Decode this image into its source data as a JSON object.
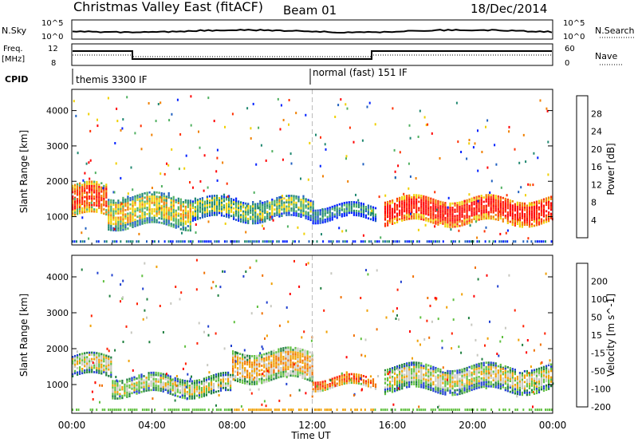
{
  "header": {
    "title": "Christmas Valley East (fitACF)",
    "beam": "Beam 01",
    "date": "18/Dec/2014"
  },
  "sky_panel": {
    "label": "N.Sky",
    "left_ticks": [
      "10^5",
      "10^0"
    ],
    "right_ticks": [
      "10^5",
      "10^0"
    ],
    "right_label": "N.Search"
  },
  "freq_panel": {
    "label_line1": "Freq.",
    "label_line2": "[MHz]",
    "left_ticks": [
      "12",
      "8"
    ],
    "right_ticks": [
      "60",
      "0"
    ],
    "right_label": "Nave"
  },
  "cpid_panel": {
    "label": "CPID",
    "mode1": "themis 3300 IF",
    "mode2": "normal (fast) 151 IF"
  },
  "chart_data": [
    {
      "type": "heatmap",
      "quantity": "Power",
      "ylabel": "Slant Range [km]",
      "yticks": [
        "1000",
        "2000",
        "3000",
        "4000"
      ],
      "ylim": [
        200,
        4600
      ],
      "xlim": [
        0,
        24
      ],
      "colorbar_label": "Power [dB]",
      "colorbar_ticks": [
        "4",
        "8",
        "12",
        "16",
        "20",
        "24",
        "28"
      ],
      "colorbar_range": [
        0,
        30
      ],
      "colors": [
        "#0020ff",
        "#2060c0",
        "#208870",
        "#50b060",
        "#f0d000",
        "#f08000",
        "#ff3000",
        "#ff0000"
      ],
      "bands": [
        {
          "t0": 0.0,
          "t1": 1.8,
          "r0": 1000,
          "r1": 1900,
          "level": 6
        },
        {
          "t0": 1.8,
          "t1": 6.0,
          "r0": 700,
          "r1": 1600,
          "level": 4
        },
        {
          "t0": 6.0,
          "t1": 12.0,
          "r0": 900,
          "r1": 1500,
          "level": 3
        },
        {
          "t0": 12.0,
          "t1": 15.2,
          "r0": 900,
          "r1": 1300,
          "level": 2
        },
        {
          "t0": 15.6,
          "t1": 24.0,
          "r0": 800,
          "r1": 1500,
          "level": 7
        }
      ]
    },
    {
      "type": "heatmap",
      "quantity": "Velocity",
      "ylabel": "Slant Range [km]",
      "yticks": [
        "1000",
        "2000",
        "3000",
        "4000"
      ],
      "ylim": [
        200,
        4600
      ],
      "xlim": [
        0,
        24
      ],
      "colorbar_label": "Velocity [m s^-1]",
      "colorbar_ticks": [
        "200",
        "100",
        "50",
        "15",
        "-15",
        "-50",
        "-100",
        "-200"
      ],
      "colorbar_range": [
        -250,
        250
      ],
      "colors": [
        "#2040d0",
        "#208040",
        "#60c040",
        "#c8c8c0",
        "#f0a000",
        "#f07000",
        "#ff2000",
        "#ff0000"
      ],
      "bands": [
        {
          "t0": 0.0,
          "t1": 2.0,
          "r0": 1200,
          "r1": 1800,
          "level": 3
        },
        {
          "t0": 2.0,
          "t1": 8.0,
          "r0": 700,
          "r1": 1200,
          "level": 3
        },
        {
          "t0": 8.0,
          "t1": 12.0,
          "r0": 1100,
          "r1": 1900,
          "level": 4
        },
        {
          "t0": 12.0,
          "t1": 15.2,
          "r0": 900,
          "r1": 1200,
          "level": 5
        },
        {
          "t0": 15.6,
          "t1": 24.0,
          "r0": 800,
          "r1": 1500,
          "level": 3
        }
      ]
    }
  ],
  "x_axis": {
    "ticks": [
      "00:00",
      "04:00",
      "08:00",
      "12:00",
      "16:00",
      "20:00",
      "00:00"
    ],
    "label": "Time UT"
  }
}
